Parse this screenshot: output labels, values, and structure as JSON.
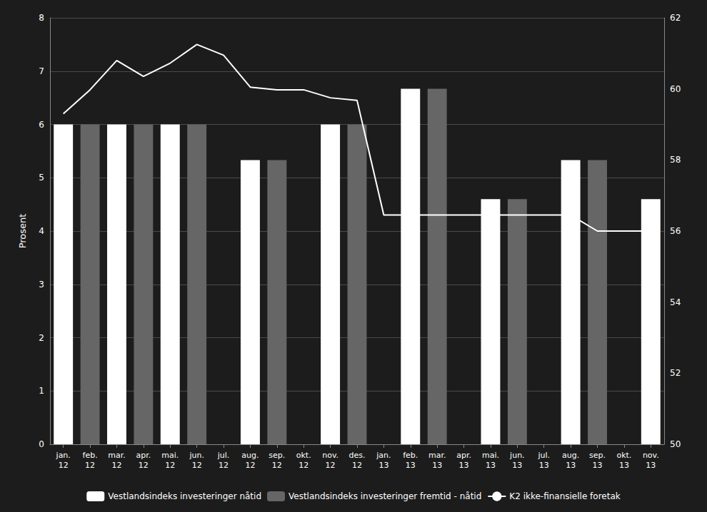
{
  "chart_data": {
    "type": "bar",
    "categories": [
      "jan.\n12",
      "feb.\n12",
      "mar.\n12",
      "apr.\n12",
      "mai.\n12",
      "jun.\n12",
      "jul.\n12",
      "aug.\n12",
      "sep.\n12",
      "okt.\n12",
      "nov.\n12",
      "des.\n12",
      "jan.\n13",
      "feb.\n13",
      "mar.\n13",
      "apr.\n13",
      "mai.\n13",
      "jun.\n13",
      "jul.\n13",
      "aug.\n13",
      "sep.\n13",
      "okt.\n13",
      "nov.\n13"
    ],
    "series": [
      {
        "name": "Vestlandsindeks investeringer nåtid",
        "type": "bar",
        "color": "#ffffff",
        "values": [
          6.0,
          0,
          6.0,
          0,
          6.0,
          0,
          0,
          5.33,
          0,
          0,
          6.0,
          0,
          0,
          6.67,
          0,
          0,
          4.6,
          0,
          0,
          5.33,
          0,
          0,
          4.6
        ]
      },
      {
        "name": "Vestlandsindeks investeringer fremtid - nåtid",
        "type": "bar",
        "color": "#666666",
        "values": [
          0,
          6.0,
          0,
          6.0,
          0,
          6.0,
          0,
          0,
          5.33,
          0,
          0,
          6.0,
          0,
          0,
          6.67,
          0,
          0,
          4.6,
          0,
          0,
          5.33,
          0,
          0
        ]
      },
      {
        "name": "K2 ikke-finansielle foretak",
        "type": "line",
        "color": "#ffffff",
        "values": [
          6.2,
          6.65,
          7.2,
          6.9,
          7.15,
          7.5,
          7.3,
          6.7,
          6.65,
          6.65,
          6.5,
          6.45,
          4.3,
          4.3,
          4.3,
          4.3,
          4.3,
          4.3,
          4.3,
          4.3,
          4.0,
          4.0,
          4.0
        ]
      }
    ],
    "ylabel": "Prosent",
    "ylim": [
      0,
      8
    ],
    "yticks": [
      0,
      1,
      2,
      3,
      4,
      5,
      6,
      7,
      8
    ],
    "y2lim": [
      50,
      62
    ],
    "y2ticks": [
      50,
      52,
      54,
      56,
      58,
      60,
      62
    ],
    "grid": true,
    "legend": "bottom"
  }
}
